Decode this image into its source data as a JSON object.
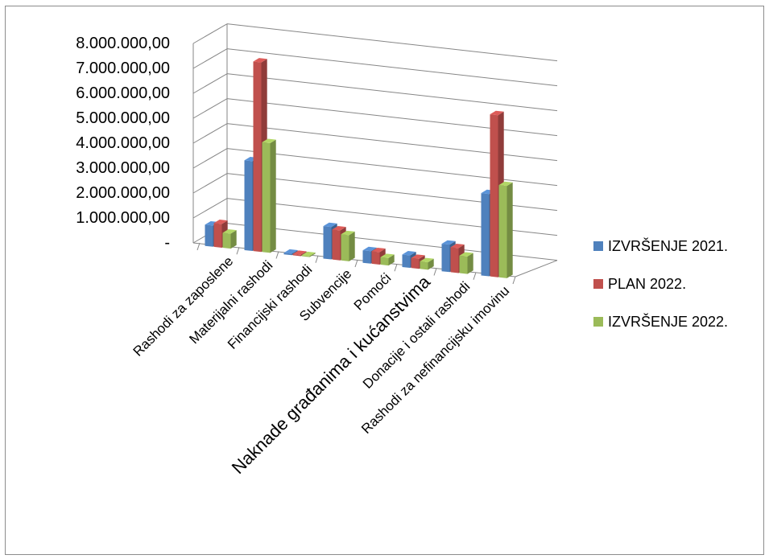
{
  "chart_data": {
    "type": "bar",
    "title": "",
    "xlabel": "",
    "ylabel": "",
    "ylim": [
      0,
      8000000
    ],
    "yticks": [
      "-",
      "1.000.000,00",
      "2.000.000,00",
      "3.000.000,00",
      "4.000.000,00",
      "5.000.000,00",
      "6.000.000,00",
      "7.000.000,00",
      "8.000.000,00"
    ],
    "grid": true,
    "legend_position": "right",
    "categories": [
      "Rashodi za zaposlene",
      "Materijalni rashodi",
      "Financijski rashodi",
      "Subvencije",
      "Pomoći",
      "Naknade građanima i kućanstvima",
      "Donacije i ostali rashodi",
      "Rashodi za nefinancijsku imovinu"
    ],
    "series": [
      {
        "name": "IZVRŠENJE 2021.",
        "color": "#4f81bd",
        "values": [
          850000,
          3600000,
          60000,
          1300000,
          500000,
          500000,
          1100000,
          3300000
        ]
      },
      {
        "name": "PLAN 2022.",
        "color": "#c0504d",
        "values": [
          950000,
          7600000,
          50000,
          1200000,
          500000,
          400000,
          1000000,
          6500000
        ]
      },
      {
        "name": "IZVRŠENJE 2022.",
        "color": "#9bbb59",
        "values": [
          600000,
          4400000,
          40000,
          1050000,
          300000,
          300000,
          700000,
          3700000
        ]
      }
    ]
  }
}
